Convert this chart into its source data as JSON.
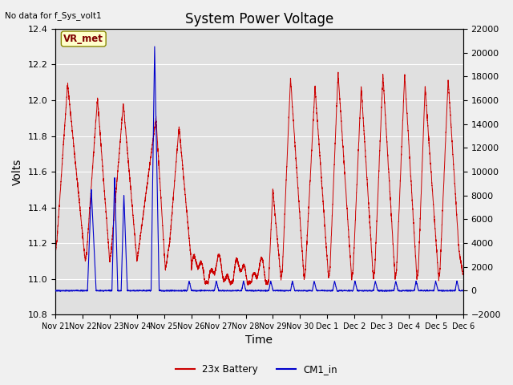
{
  "title": "System Power Voltage",
  "top_left_text": "No data for f_Sys_volt1",
  "xlabel": "Time",
  "ylabel_left": "Volts",
  "ylim_left": [
    10.8,
    12.4
  ],
  "ylim_right": [
    -2000,
    22000
  ],
  "background_color": "#f0f0f0",
  "plot_bg_color": "#e0e0e0",
  "grid_color": "#ffffff",
  "x_tick_labels": [
    "Nov 21",
    "Nov 22",
    "Nov 23",
    "Nov 24",
    "Nov 25",
    "Nov 26",
    "Nov 27",
    "Nov 28",
    "Nov 29",
    "Nov 30",
    "Dec 1",
    "Dec 2",
    "Dec 3",
    "Dec 4",
    "Dec 5",
    "Dec 6"
  ],
  "annotation_text": "VR_met",
  "legend_entries": [
    "23x Battery",
    "CM1_in"
  ],
  "legend_colors": [
    "#cc0000",
    "#0000cc"
  ],
  "red_line_color": "#cc0000",
  "blue_line_color": "#0000cc",
  "title_fontsize": 12,
  "axis_label_fontsize": 10,
  "tick_fontsize": 8
}
